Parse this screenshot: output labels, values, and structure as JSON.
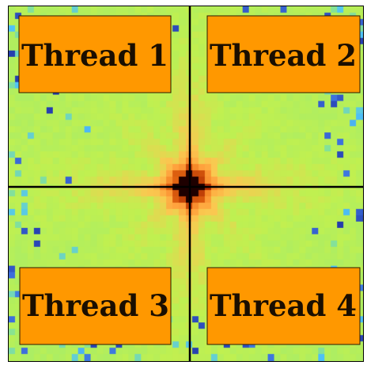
{
  "quadrant_labels": [
    "Thread 1",
    "Thread 2",
    "Thread 3",
    "Thread 4"
  ],
  "colors": {
    "label_box": "#ff9800",
    "label_border": "#2a1a00",
    "divider_lines": "#000000",
    "heatmap_low": "#1e2fa0",
    "heatmap_mid_low": "#4fc3f7",
    "heatmap_mid": "#c0f050",
    "heatmap_mid_high": "#ffb000",
    "heatmap_high": "#9a1c00",
    "heatmap_peak": "#1a0000"
  }
}
